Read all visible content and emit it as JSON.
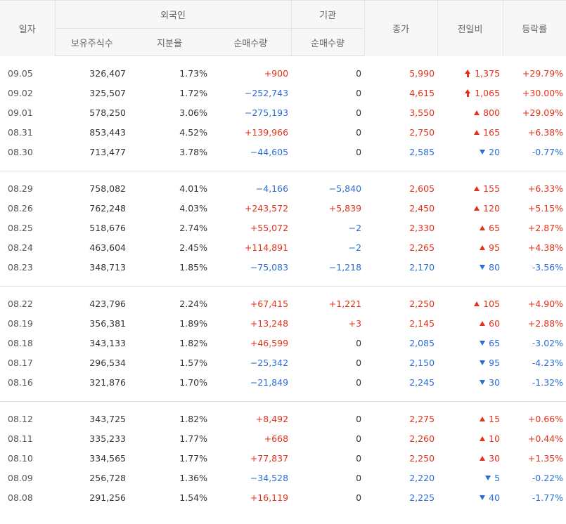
{
  "headers": {
    "date": "일자",
    "foreign": "외국인",
    "institution": "기관",
    "holdings": "보유주식수",
    "ratio": "지분율",
    "foreign_net": "순매수량",
    "inst_net": "순매수량",
    "close": "종가",
    "change": "전일비",
    "rate": "등락률"
  },
  "colors": {
    "up": "#e5301a",
    "down": "#2b6dd6",
    "neutral": "#333333"
  },
  "groups": [
    [
      {
        "date": "09.05",
        "holdings": "326,407",
        "ratio": "1.73%",
        "foreign": "+900",
        "inst": "0",
        "close": "5,990",
        "change": "1,375",
        "dir": "limit-up",
        "rate": "+29.79%"
      },
      {
        "date": "09.02",
        "holdings": "325,507",
        "ratio": "1.72%",
        "foreign": "−252,743",
        "inst": "0",
        "close": "4,615",
        "change": "1,065",
        "dir": "limit-up",
        "rate": "+30.00%"
      },
      {
        "date": "09.01",
        "holdings": "578,250",
        "ratio": "3.06%",
        "foreign": "−275,193",
        "inst": "0",
        "close": "3,550",
        "change": "800",
        "dir": "up",
        "rate": "+29.09%"
      },
      {
        "date": "08.31",
        "holdings": "853,443",
        "ratio": "4.52%",
        "foreign": "+139,966",
        "inst": "0",
        "close": "2,750",
        "change": "165",
        "dir": "up",
        "rate": "+6.38%"
      },
      {
        "date": "08.30",
        "holdings": "713,477",
        "ratio": "3.78%",
        "foreign": "−44,605",
        "inst": "0",
        "close": "2,585",
        "change": "20",
        "dir": "down",
        "rate": "-0.77%"
      }
    ],
    [
      {
        "date": "08.29",
        "holdings": "758,082",
        "ratio": "4.01%",
        "foreign": "−4,166",
        "inst": "−5,840",
        "close": "2,605",
        "change": "155",
        "dir": "up",
        "rate": "+6.33%"
      },
      {
        "date": "08.26",
        "holdings": "762,248",
        "ratio": "4.03%",
        "foreign": "+243,572",
        "inst": "+5,839",
        "close": "2,450",
        "change": "120",
        "dir": "up",
        "rate": "+5.15%"
      },
      {
        "date": "08.25",
        "holdings": "518,676",
        "ratio": "2.74%",
        "foreign": "+55,072",
        "inst": "−2",
        "close": "2,330",
        "change": "65",
        "dir": "up",
        "rate": "+2.87%"
      },
      {
        "date": "08.24",
        "holdings": "463,604",
        "ratio": "2.45%",
        "foreign": "+114,891",
        "inst": "−2",
        "close": "2,265",
        "change": "95",
        "dir": "up",
        "rate": "+4.38%"
      },
      {
        "date": "08.23",
        "holdings": "348,713",
        "ratio": "1.85%",
        "foreign": "−75,083",
        "inst": "−1,218",
        "close": "2,170",
        "change": "80",
        "dir": "down",
        "rate": "-3.56%"
      }
    ],
    [
      {
        "date": "08.22",
        "holdings": "423,796",
        "ratio": "2.24%",
        "foreign": "+67,415",
        "inst": "+1,221",
        "close": "2,250",
        "change": "105",
        "dir": "up",
        "rate": "+4.90%"
      },
      {
        "date": "08.19",
        "holdings": "356,381",
        "ratio": "1.89%",
        "foreign": "+13,248",
        "inst": "+3",
        "close": "2,145",
        "change": "60",
        "dir": "up",
        "rate": "+2.88%"
      },
      {
        "date": "08.18",
        "holdings": "343,133",
        "ratio": "1.82%",
        "foreign": "+46,599",
        "inst": "0",
        "close": "2,085",
        "change": "65",
        "dir": "down",
        "rate": "-3.02%"
      },
      {
        "date": "08.17",
        "holdings": "296,534",
        "ratio": "1.57%",
        "foreign": "−25,342",
        "inst": "0",
        "close": "2,150",
        "change": "95",
        "dir": "down",
        "rate": "-4.23%"
      },
      {
        "date": "08.16",
        "holdings": "321,876",
        "ratio": "1.70%",
        "foreign": "−21,849",
        "inst": "0",
        "close": "2,245",
        "change": "30",
        "dir": "down",
        "rate": "-1.32%"
      }
    ],
    [
      {
        "date": "08.12",
        "holdings": "343,725",
        "ratio": "1.82%",
        "foreign": "+8,492",
        "inst": "0",
        "close": "2,275",
        "change": "15",
        "dir": "up",
        "rate": "+0.66%"
      },
      {
        "date": "08.11",
        "holdings": "335,233",
        "ratio": "1.77%",
        "foreign": "+668",
        "inst": "0",
        "close": "2,260",
        "change": "10",
        "dir": "up",
        "rate": "+0.44%"
      },
      {
        "date": "08.10",
        "holdings": "334,565",
        "ratio": "1.77%",
        "foreign": "+77,837",
        "inst": "0",
        "close": "2,250",
        "change": "30",
        "dir": "up",
        "rate": "+1.35%"
      },
      {
        "date": "08.09",
        "holdings": "256,728",
        "ratio": "1.36%",
        "foreign": "−34,528",
        "inst": "0",
        "close": "2,220",
        "change": "5",
        "dir": "down",
        "rate": "-0.22%"
      },
      {
        "date": "08.08",
        "holdings": "291,256",
        "ratio": "1.54%",
        "foreign": "+16,119",
        "inst": "0",
        "close": "2,225",
        "change": "40",
        "dir": "down",
        "rate": "-1.77%"
      }
    ]
  ]
}
